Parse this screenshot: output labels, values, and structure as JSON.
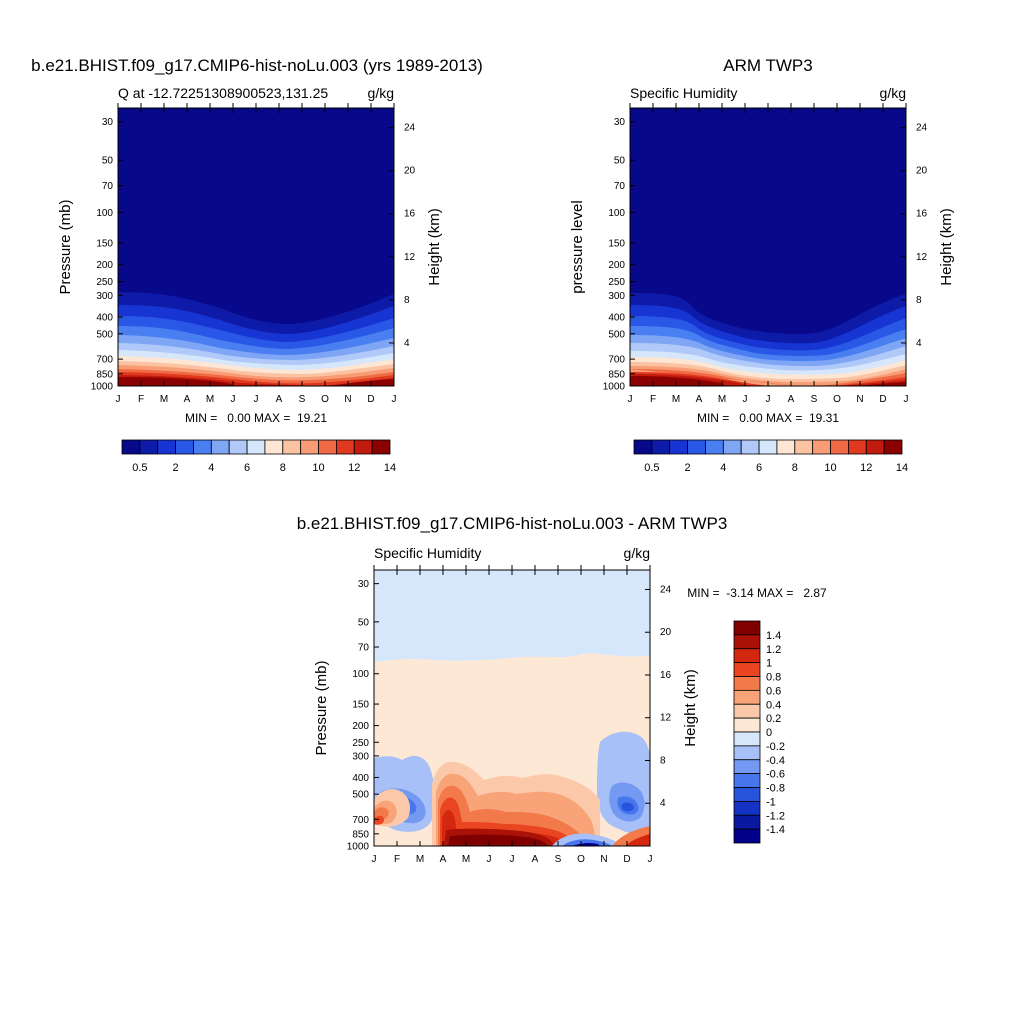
{
  "page": {
    "title_top_left": "b.e21.BHIST.f09_g17.CMIP6-hist-noLu.003 (yrs 1989-2013)",
    "title_top_right": "ARM TWP3",
    "title_bottom": "b.e21.BHIST.f09_g17.CMIP6-hist-noLu.003 - ARM TWP3"
  },
  "colors": {
    "seq": [
      "#08088a",
      "#0e1aa8",
      "#1735d3",
      "#2a58e6",
      "#4a7ff2",
      "#7ea6f5",
      "#b0c9f8",
      "#d6e6fb",
      "#fde6d4",
      "#fbc3a2",
      "#f79c74",
      "#f06a45",
      "#e0391f",
      "#c21a0d",
      "#8b0000"
    ],
    "div": [
      "#00008b",
      "#0a1aa0",
      "#1433c4",
      "#2754dc",
      "#4675ee",
      "#7399f3",
      "#a7c0f7",
      "#d6e7fb",
      "#fde8d6",
      "#fbc9aa",
      "#f8a478",
      "#f2794a",
      "#e84520",
      "#d4270f",
      "#aa1208",
      "#800000"
    ]
  },
  "chart_data": [
    {
      "type": "heatmap",
      "title": "Q at -12.72251308900523,131.25",
      "units": "g/kg",
      "ylabel": "Pressure (mb)",
      "ylabel_right": "Height (km)",
      "x_ticks": [
        "J",
        "F",
        "M",
        "A",
        "M",
        "J",
        "J",
        "A",
        "S",
        "O",
        "N",
        "D",
        "J"
      ],
      "y_ticks": [
        30,
        50,
        70,
        100,
        150,
        200,
        250,
        300,
        400,
        500,
        700,
        850,
        1000
      ],
      "y_ticks_right": [
        24,
        20,
        16,
        12,
        8,
        4
      ],
      "ylim": [
        1000,
        25
      ],
      "stats": "MIN =   0.00 MAX =  19.21",
      "colorbar": {
        "labels": [
          "0.5",
          "2",
          "4",
          "6",
          "8",
          "10",
          "12",
          "14"
        ]
      },
      "months": [
        "Jan",
        "Feb",
        "Mar",
        "Apr",
        "May",
        "Jun",
        "Jul",
        "Aug",
        "Sep",
        "Oct",
        "Nov",
        "Dec",
        "Jan"
      ],
      "boundary_pressure_2gkg": [
        290,
        290,
        300,
        340,
        390,
        420,
        430,
        430,
        420,
        400,
        360,
        320,
        290
      ],
      "surface_humidity": [
        19,
        19,
        18,
        16,
        12,
        9,
        7,
        7,
        9,
        12,
        16,
        18,
        19
      ]
    },
    {
      "type": "heatmap",
      "title": "Specific Humidity",
      "units": "g/kg",
      "ylabel": "pressure level",
      "ylabel_right": "Height (km)",
      "x_ticks": [
        "J",
        "F",
        "M",
        "A",
        "M",
        "J",
        "J",
        "A",
        "S",
        "O",
        "N",
        "D",
        "J"
      ],
      "y_ticks": [
        30,
        50,
        70,
        100,
        150,
        200,
        250,
        300,
        400,
        500,
        700,
        850,
        1000
      ],
      "y_ticks_right": [
        24,
        20,
        16,
        12,
        8,
        4
      ],
      "ylim": [
        1000,
        25
      ],
      "stats": "MIN =   0.00 MAX =  19.31",
      "colorbar": {
        "labels": [
          "0.5",
          "2",
          "4",
          "6",
          "8",
          "10",
          "12",
          "14"
        ]
      },
      "months": [
        "Jan",
        "Feb",
        "Mar",
        "Apr",
        "May",
        "Jun",
        "Jul",
        "Aug",
        "Sep",
        "Oct",
        "Nov",
        "Dec",
        "Jan"
      ],
      "boundary_pressure_2gkg": [
        290,
        295,
        300,
        380,
        430,
        470,
        500,
        510,
        500,
        440,
        360,
        310,
        290
      ],
      "surface_humidity": [
        19,
        19,
        18,
        15,
        11,
        8,
        6,
        6,
        8,
        12,
        16,
        18,
        19
      ]
    },
    {
      "type": "heatmap",
      "title": "Specific Humidity",
      "units": "g/kg",
      "ylabel": "Pressure (mb)",
      "ylabel_right": "Height (km)",
      "x_ticks": [
        "J",
        "F",
        "M",
        "A",
        "M",
        "J",
        "J",
        "A",
        "S",
        "O",
        "N",
        "D",
        "J"
      ],
      "y_ticks": [
        30,
        50,
        70,
        100,
        150,
        200,
        250,
        300,
        400,
        500,
        700,
        850,
        1000
      ],
      "y_ticks_right": [
        24,
        20,
        16,
        12,
        8,
        4
      ],
      "ylim": [
        1000,
        25
      ],
      "stats": "MIN =  -3.14 MAX =   2.87",
      "colorbar": {
        "labels": [
          "1.4",
          "1.2",
          "1",
          "0.8",
          "0.6",
          "0.4",
          "0.2",
          "0",
          "-0.2",
          "-0.4",
          "-0.6",
          "-0.8",
          "-1",
          "-1.2",
          "-1.4"
        ]
      },
      "months": [
        "Jan",
        "Feb",
        "Mar",
        "Apr",
        "May",
        "Jun",
        "Jul",
        "Aug",
        "Sep",
        "Oct",
        "Nov",
        "Dec",
        "Jan"
      ],
      "upper_boundary_pressure": [
        78,
        80,
        79,
        77,
        78,
        76,
        77,
        78,
        77,
        73,
        77,
        76,
        78
      ]
    }
  ]
}
